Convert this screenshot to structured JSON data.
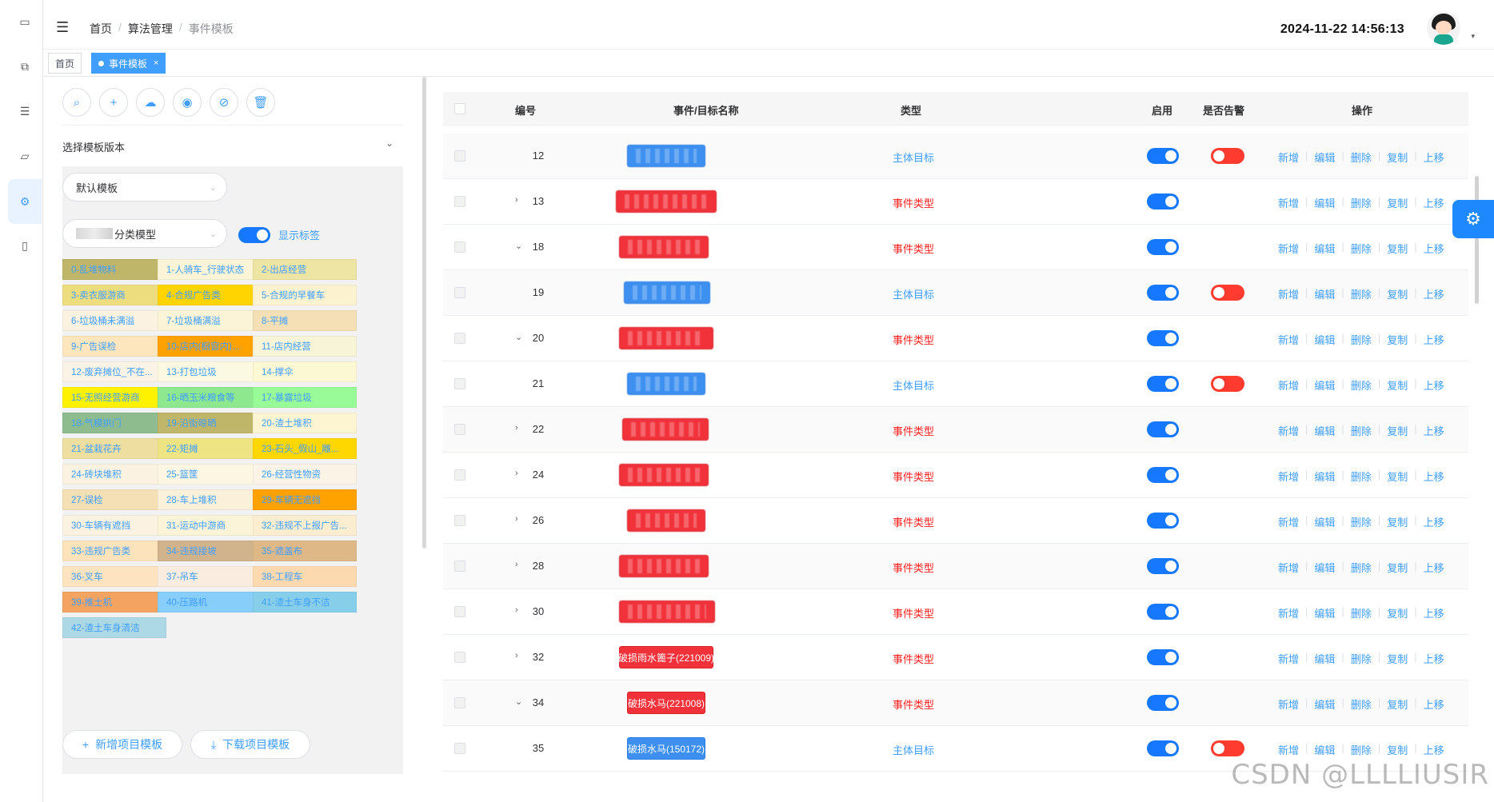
{
  "sidebar": {
    "icons": [
      "monitor-icon",
      "screen-icon",
      "list-icon",
      "folder-icon",
      "settings-icon",
      "phone-icon"
    ]
  },
  "header": {
    "breadcrumb": [
      "首页",
      "算法管理",
      "事件模板"
    ],
    "datetime": "2024-11-22 14:56:13",
    "caret": "▾"
  },
  "tags": {
    "home": "首页",
    "active": "事件模板",
    "close": "×"
  },
  "left": {
    "toolbar": [
      "search-icon",
      "add-icon",
      "upload-icon",
      "eye-icon",
      "eye-hidden-icon",
      "delete-icon"
    ],
    "version_label": "选择模板版本",
    "version_select": "默认模板",
    "model_select": "分类模型",
    "show_label": "显示标签",
    "categories": [
      {
        "label": "0-乱堆物料",
        "color": "#bfb669"
      },
      {
        "label": "1-人骑车_行驶状态",
        "color": "#fbf4d6"
      },
      {
        "label": "2-出店经营",
        "color": "#eee4a3"
      },
      {
        "label": "3-卖衣服游商",
        "color": "#eedd7f"
      },
      {
        "label": "4-合规广告类",
        "color": "#ffd400"
      },
      {
        "label": "5-合规的早餐车",
        "color": "#fdf2cf"
      },
      {
        "label": "6-垃圾桶未满溢",
        "color": "#fbf2e2"
      },
      {
        "label": "7-垃圾桶满溢",
        "color": "#fbf4d6"
      },
      {
        "label": "8-平摊",
        "color": "#f5dfb5"
      },
      {
        "label": "9-广告误检",
        "color": "#fde5bd"
      },
      {
        "label": "10-店内(橱窗内)...",
        "color": "#ffa200"
      },
      {
        "label": "11-店内经营",
        "color": "#f7f4d8"
      },
      {
        "label": "12-废弃摊位_不在...",
        "color": "#fbf3e6"
      },
      {
        "label": "13-打包垃圾",
        "color": "#fcf9e2"
      },
      {
        "label": "14-撑伞",
        "color": "#fdf8d4"
      },
      {
        "label": "15-无照经营游商",
        "color": "#fff200"
      },
      {
        "label": "16-晒玉米粮食等",
        "color": "#8ee88e"
      },
      {
        "label": "17-暴露垃圾",
        "color": "#98fb98"
      },
      {
        "label": "18-气模拱门",
        "color": "#8fbc8f"
      },
      {
        "label": "19-沿街晾晒",
        "color": "#bfb669"
      },
      {
        "label": "20-渣土堆积",
        "color": "#fdf5d2"
      },
      {
        "label": "21-盆栽花卉",
        "color": "#eedfa0"
      },
      {
        "label": "22-矩摊",
        "color": "#eee484"
      },
      {
        "label": "23-石头_假山_雕...",
        "color": "#ffd700"
      },
      {
        "label": "24-砖块堆积",
        "color": "#fbf2e2"
      },
      {
        "label": "25-篮筐",
        "color": "#fcf6e2"
      },
      {
        "label": "26-经营性物资",
        "color": "#fbf3e6"
      },
      {
        "label": "27-误检",
        "color": "#f5dfb5"
      },
      {
        "label": "28-车上堆积",
        "color": "#fbf0da"
      },
      {
        "label": "29-车辆无遮挡",
        "color": "#ffa200"
      },
      {
        "label": "30-车辆有遮挡",
        "color": "#fbf2e2"
      },
      {
        "label": "31-运动中游商",
        "color": "#fcf4d8"
      },
      {
        "label": "32-违规不上报广告...",
        "color": "#fbeed0"
      },
      {
        "label": "33-违规广告类",
        "color": "#fde3bb"
      },
      {
        "label": "34-违规接坡",
        "color": "#d2b48c"
      },
      {
        "label": "35-遮盖布",
        "color": "#deb887"
      },
      {
        "label": "36-叉车",
        "color": "#fde3c0"
      },
      {
        "label": "37-吊车",
        "color": "#fbece0"
      },
      {
        "label": "38-工程车",
        "color": "#fdd9b0"
      },
      {
        "label": "39-推土机",
        "color": "#f4a460"
      },
      {
        "label": "40-压路机",
        "color": "#87cefa"
      },
      {
        "label": "41-渣土车身不洁",
        "color": "#87ceeb"
      },
      {
        "label": "42-渣土车身清洁",
        "color": "#add8e6"
      }
    ],
    "add_template": "新增项目模板",
    "download_template": "下载项目模板"
  },
  "table": {
    "headers": {
      "id": "编号",
      "name": "事件/目标名称",
      "type": "类型",
      "enabled": "启用",
      "alarm": "是否告警",
      "ops": "操作"
    },
    "ops": [
      "新增",
      "编辑",
      "删除",
      "复制",
      "上移"
    ],
    "rows": [
      {
        "id": "12",
        "expand": "",
        "name": "",
        "color": "blue",
        "type": "主体目标",
        "type_color": "blue",
        "alarm": true
      },
      {
        "id": "13",
        "expand": "›",
        "name": "",
        "color": "red",
        "type": "事件类型",
        "type_color": "red",
        "alarm": false
      },
      {
        "id": "18",
        "expand": "⌄",
        "name": "",
        "color": "red",
        "type": "事件类型",
        "type_color": "red",
        "alarm": false
      },
      {
        "id": "19",
        "expand": "",
        "name": "",
        "color": "blue",
        "type": "主体目标",
        "type_color": "blue",
        "alarm": true
      },
      {
        "id": "20",
        "expand": "⌄",
        "name": "",
        "color": "red",
        "type": "事件类型",
        "type_color": "red",
        "alarm": false
      },
      {
        "id": "21",
        "expand": "",
        "name": "",
        "color": "blue",
        "type": "主体目标",
        "type_color": "blue",
        "alarm": true
      },
      {
        "id": "22",
        "expand": "›",
        "name": "",
        "color": "red",
        "type": "事件类型",
        "type_color": "red",
        "alarm": false
      },
      {
        "id": "24",
        "expand": "›",
        "name": "",
        "color": "red",
        "type": "事件类型",
        "type_color": "red",
        "alarm": false
      },
      {
        "id": "26",
        "expand": "›",
        "name": "",
        "color": "red",
        "type": "事件类型",
        "type_color": "red",
        "alarm": false
      },
      {
        "id": "28",
        "expand": "›",
        "name": "",
        "color": "red",
        "type": "事件类型",
        "type_color": "red",
        "alarm": false
      },
      {
        "id": "30",
        "expand": "›",
        "name": "",
        "color": "red",
        "type": "事件类型",
        "type_color": "red",
        "alarm": false
      },
      {
        "id": "32",
        "expand": "›",
        "name": "破损雨水篦子(221009)",
        "color": "red",
        "type": "事件类型",
        "type_color": "red",
        "alarm": false
      },
      {
        "id": "34",
        "expand": "⌄",
        "name": "破损水马(221008)",
        "color": "red",
        "type": "事件类型",
        "type_color": "red",
        "alarm": false
      },
      {
        "id": "35",
        "expand": "",
        "name": "破损水马(150172)",
        "color": "blue",
        "type": "主体目标",
        "type_color": "blue",
        "alarm": true
      }
    ]
  },
  "watermark": "CSDN @LLLLIUSIR"
}
